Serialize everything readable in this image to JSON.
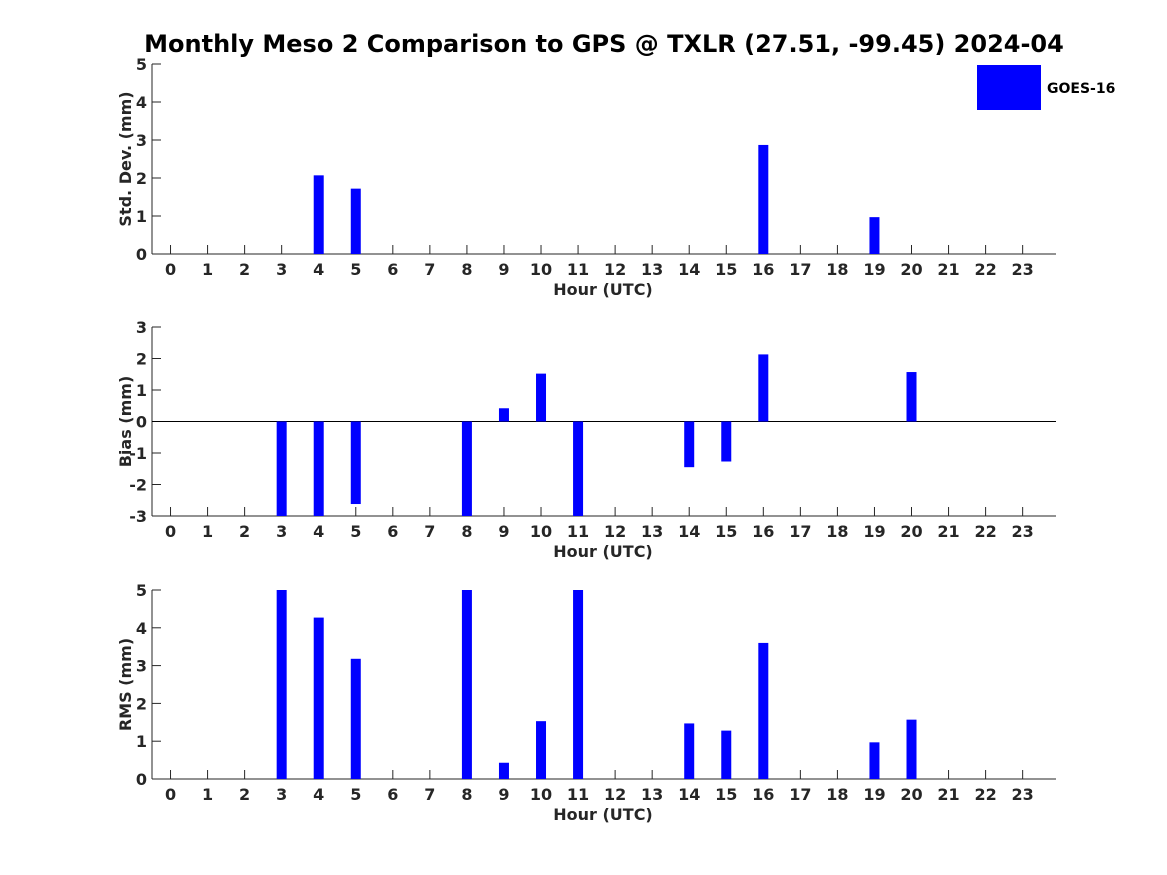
{
  "title": "Monthly Meso 2 Comparison to GPS @ TXLR (27.51, -99.45) 2024-04",
  "bar_color": "#0000ff",
  "chart_data": [
    {
      "type": "bar",
      "categories": [
        "0",
        "1",
        "2",
        "3",
        "4",
        "5",
        "6",
        "7",
        "8",
        "9",
        "10",
        "11",
        "12",
        "13",
        "14",
        "15",
        "16",
        "17",
        "18",
        "19",
        "20",
        "21",
        "22",
        "23"
      ],
      "series": [
        {
          "name": "GOES-16",
          "values": [
            0,
            0,
            0,
            0,
            2.07,
            1.72,
            0,
            0,
            0,
            0,
            0,
            0,
            0,
            0,
            0,
            0,
            2.87,
            0,
            0,
            0.97,
            0,
            0,
            0,
            0
          ]
        }
      ],
      "xlabel": "Hour (UTC)",
      "ylabel": "Std. Dev. (mm)",
      "ylim": [
        0,
        5
      ],
      "yticks": [
        "0",
        "1",
        "2",
        "3",
        "4",
        "5"
      ],
      "legend": "top-right"
    },
    {
      "type": "bar",
      "categories": [
        "0",
        "1",
        "2",
        "3",
        "4",
        "5",
        "6",
        "7",
        "8",
        "9",
        "10",
        "11",
        "12",
        "13",
        "14",
        "15",
        "16",
        "17",
        "18",
        "19",
        "20",
        "21",
        "22",
        "23"
      ],
      "series": [
        {
          "name": "GOES-16",
          "values": [
            0,
            0,
            0,
            -3,
            -3,
            -2.62,
            0,
            0,
            -3,
            0.42,
            1.52,
            -3,
            0,
            0,
            -1.45,
            -1.27,
            2.13,
            0,
            0,
            0,
            1.57,
            0,
            0,
            0
          ]
        }
      ],
      "xlabel": "Hour (UTC)",
      "ylabel": "Bias (mm)",
      "ylim": [
        -3,
        3
      ],
      "yticks": [
        "-3",
        "-2",
        "-1",
        "0",
        "1",
        "2",
        "3"
      ]
    },
    {
      "type": "bar",
      "categories": [
        "0",
        "1",
        "2",
        "3",
        "4",
        "5",
        "6",
        "7",
        "8",
        "9",
        "10",
        "11",
        "12",
        "13",
        "14",
        "15",
        "16",
        "17",
        "18",
        "19",
        "20",
        "21",
        "22",
        "23"
      ],
      "series": [
        {
          "name": "GOES-16",
          "values": [
            0,
            0,
            0,
            5,
            4.27,
            3.18,
            0,
            0,
            5,
            0.43,
            1.53,
            5,
            0,
            0,
            1.47,
            1.28,
            3.6,
            0,
            0,
            0.97,
            1.57,
            0,
            0,
            0
          ]
        }
      ],
      "xlabel": "Hour (UTC)",
      "ylabel": "RMS (mm)",
      "ylim": [
        0,
        5
      ],
      "yticks": [
        "0",
        "1",
        "2",
        "3",
        "4",
        "5"
      ]
    }
  ]
}
